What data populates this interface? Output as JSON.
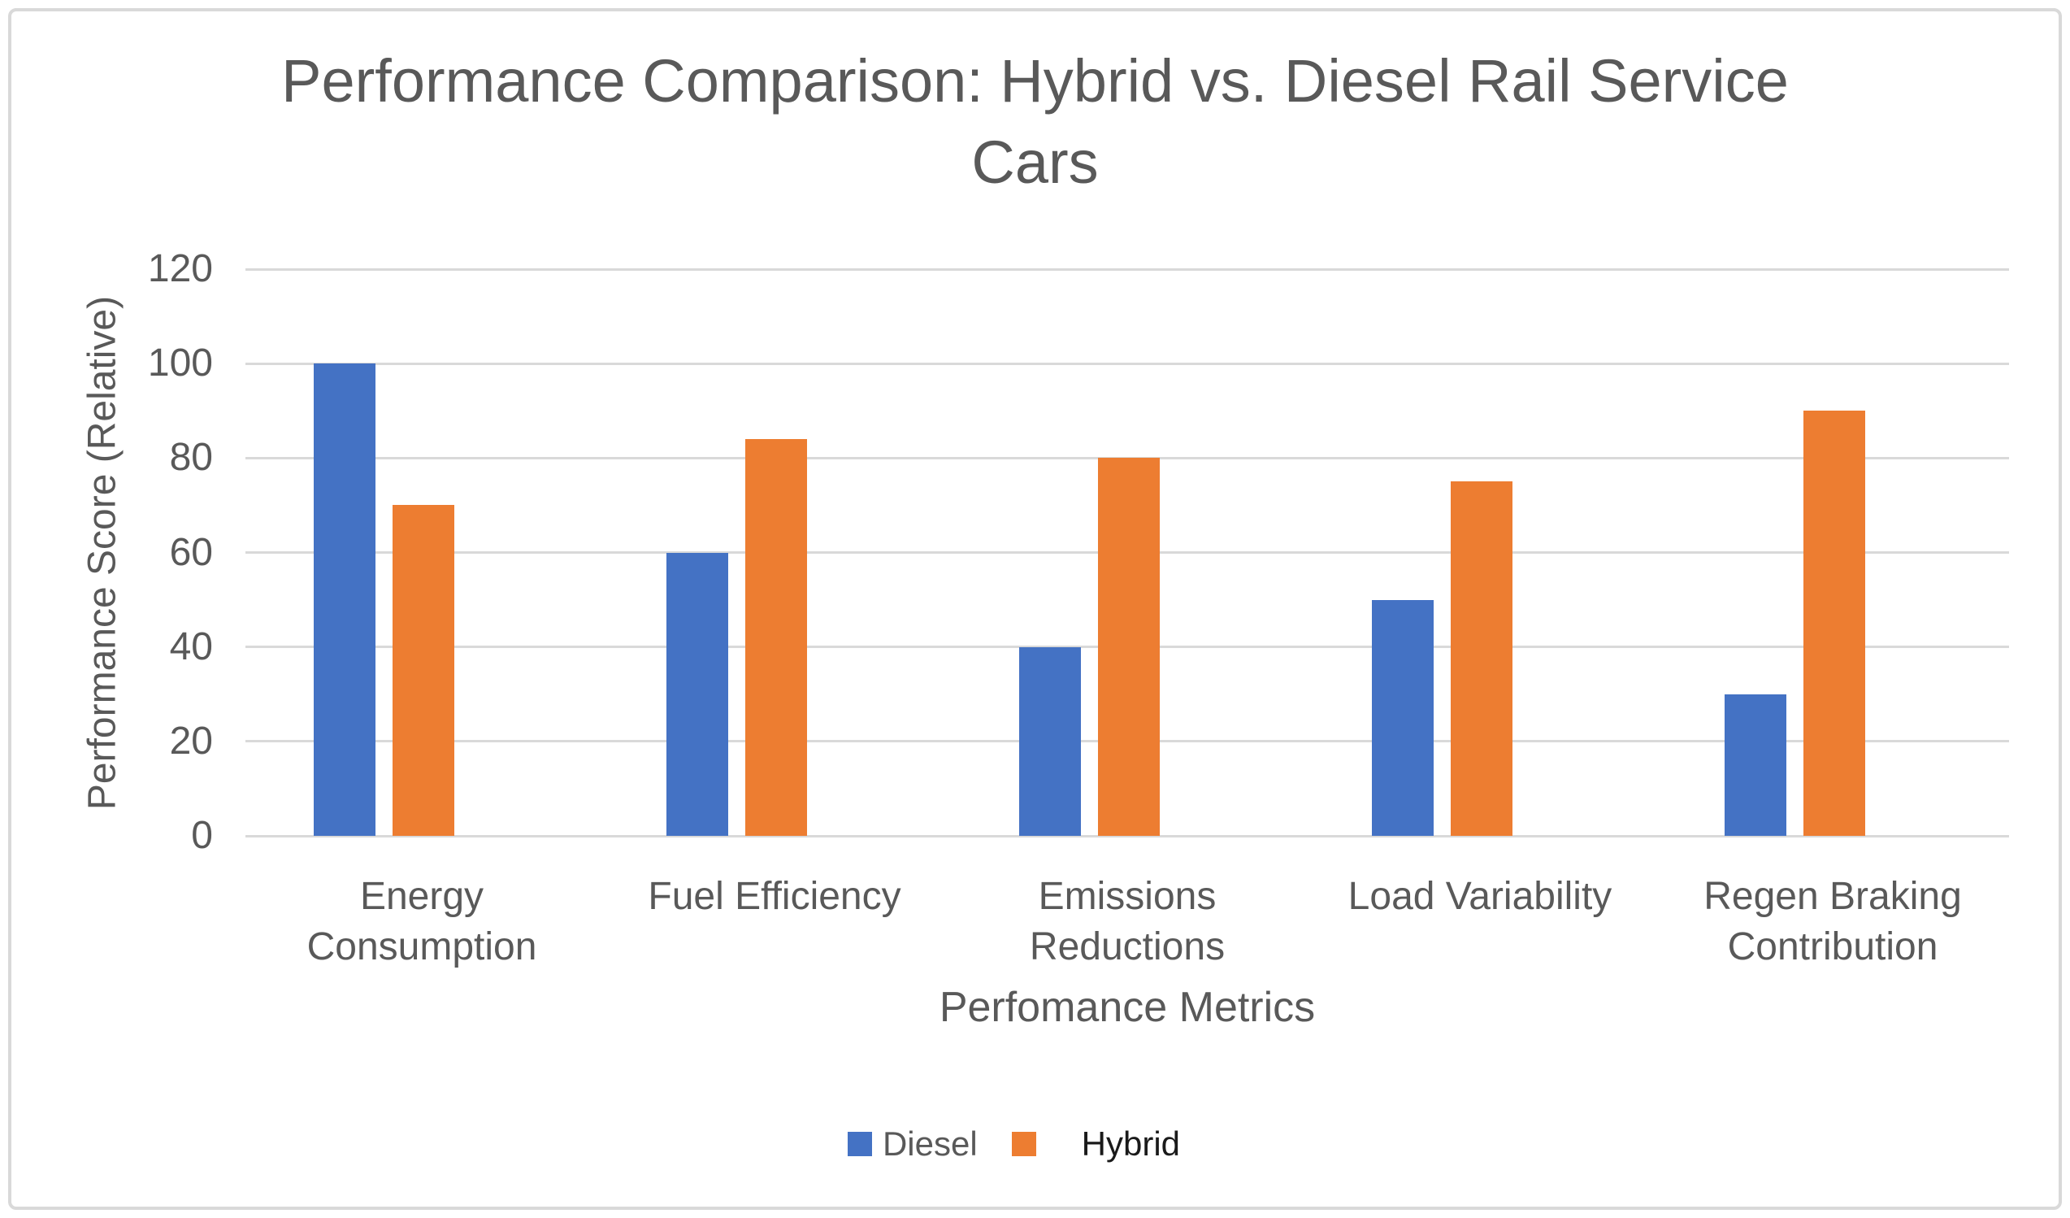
{
  "chart_data": {
    "type": "bar",
    "title": "Performance Comparison: Hybrid vs. Diesel Rail Service Cars",
    "title_lines": [
      "Performance Comparison: Hybrid vs. Diesel Rail Service",
      "Cars"
    ],
    "xlabel": "Perfomance Metrics",
    "ylabel": "Performance Score (Relative)",
    "categories": [
      "Energy Consumption",
      "Fuel Efficiency",
      "Emissions Reductions",
      "Load Variability",
      "Regen Braking Contribution"
    ],
    "category_label_lines": [
      [
        "Energy",
        "Consumption"
      ],
      [
        "Fuel Efficiency"
      ],
      [
        "Emissions",
        "Reductions"
      ],
      [
        "Load Variability"
      ],
      [
        "Regen Braking",
        "Contribution"
      ]
    ],
    "series": [
      {
        "name": "Diesel",
        "color": "#4472C4",
        "values": [
          100,
          60,
          40,
          50,
          30
        ]
      },
      {
        "name": "Hybrid",
        "color": "#ED7D31",
        "values": [
          70,
          84,
          80,
          75,
          90
        ]
      }
    ],
    "ylim": [
      0,
      120
    ],
    "yticks": [
      0,
      20,
      40,
      60,
      80,
      100,
      120
    ],
    "grid": true,
    "legend_position": "bottom",
    "legend": {
      "entries": [
        {
          "label": "Diesel",
          "swatch_color": "#4472C4",
          "label_color": "#595959"
        },
        {
          "label": "Hybrid",
          "swatch_color": "#ED7D31",
          "label_color": "#1A1A1A"
        }
      ]
    },
    "colors": {
      "gridline": "#D9D9D9",
      "frame_border": "#D9D9D9",
      "text": "#595959"
    }
  }
}
